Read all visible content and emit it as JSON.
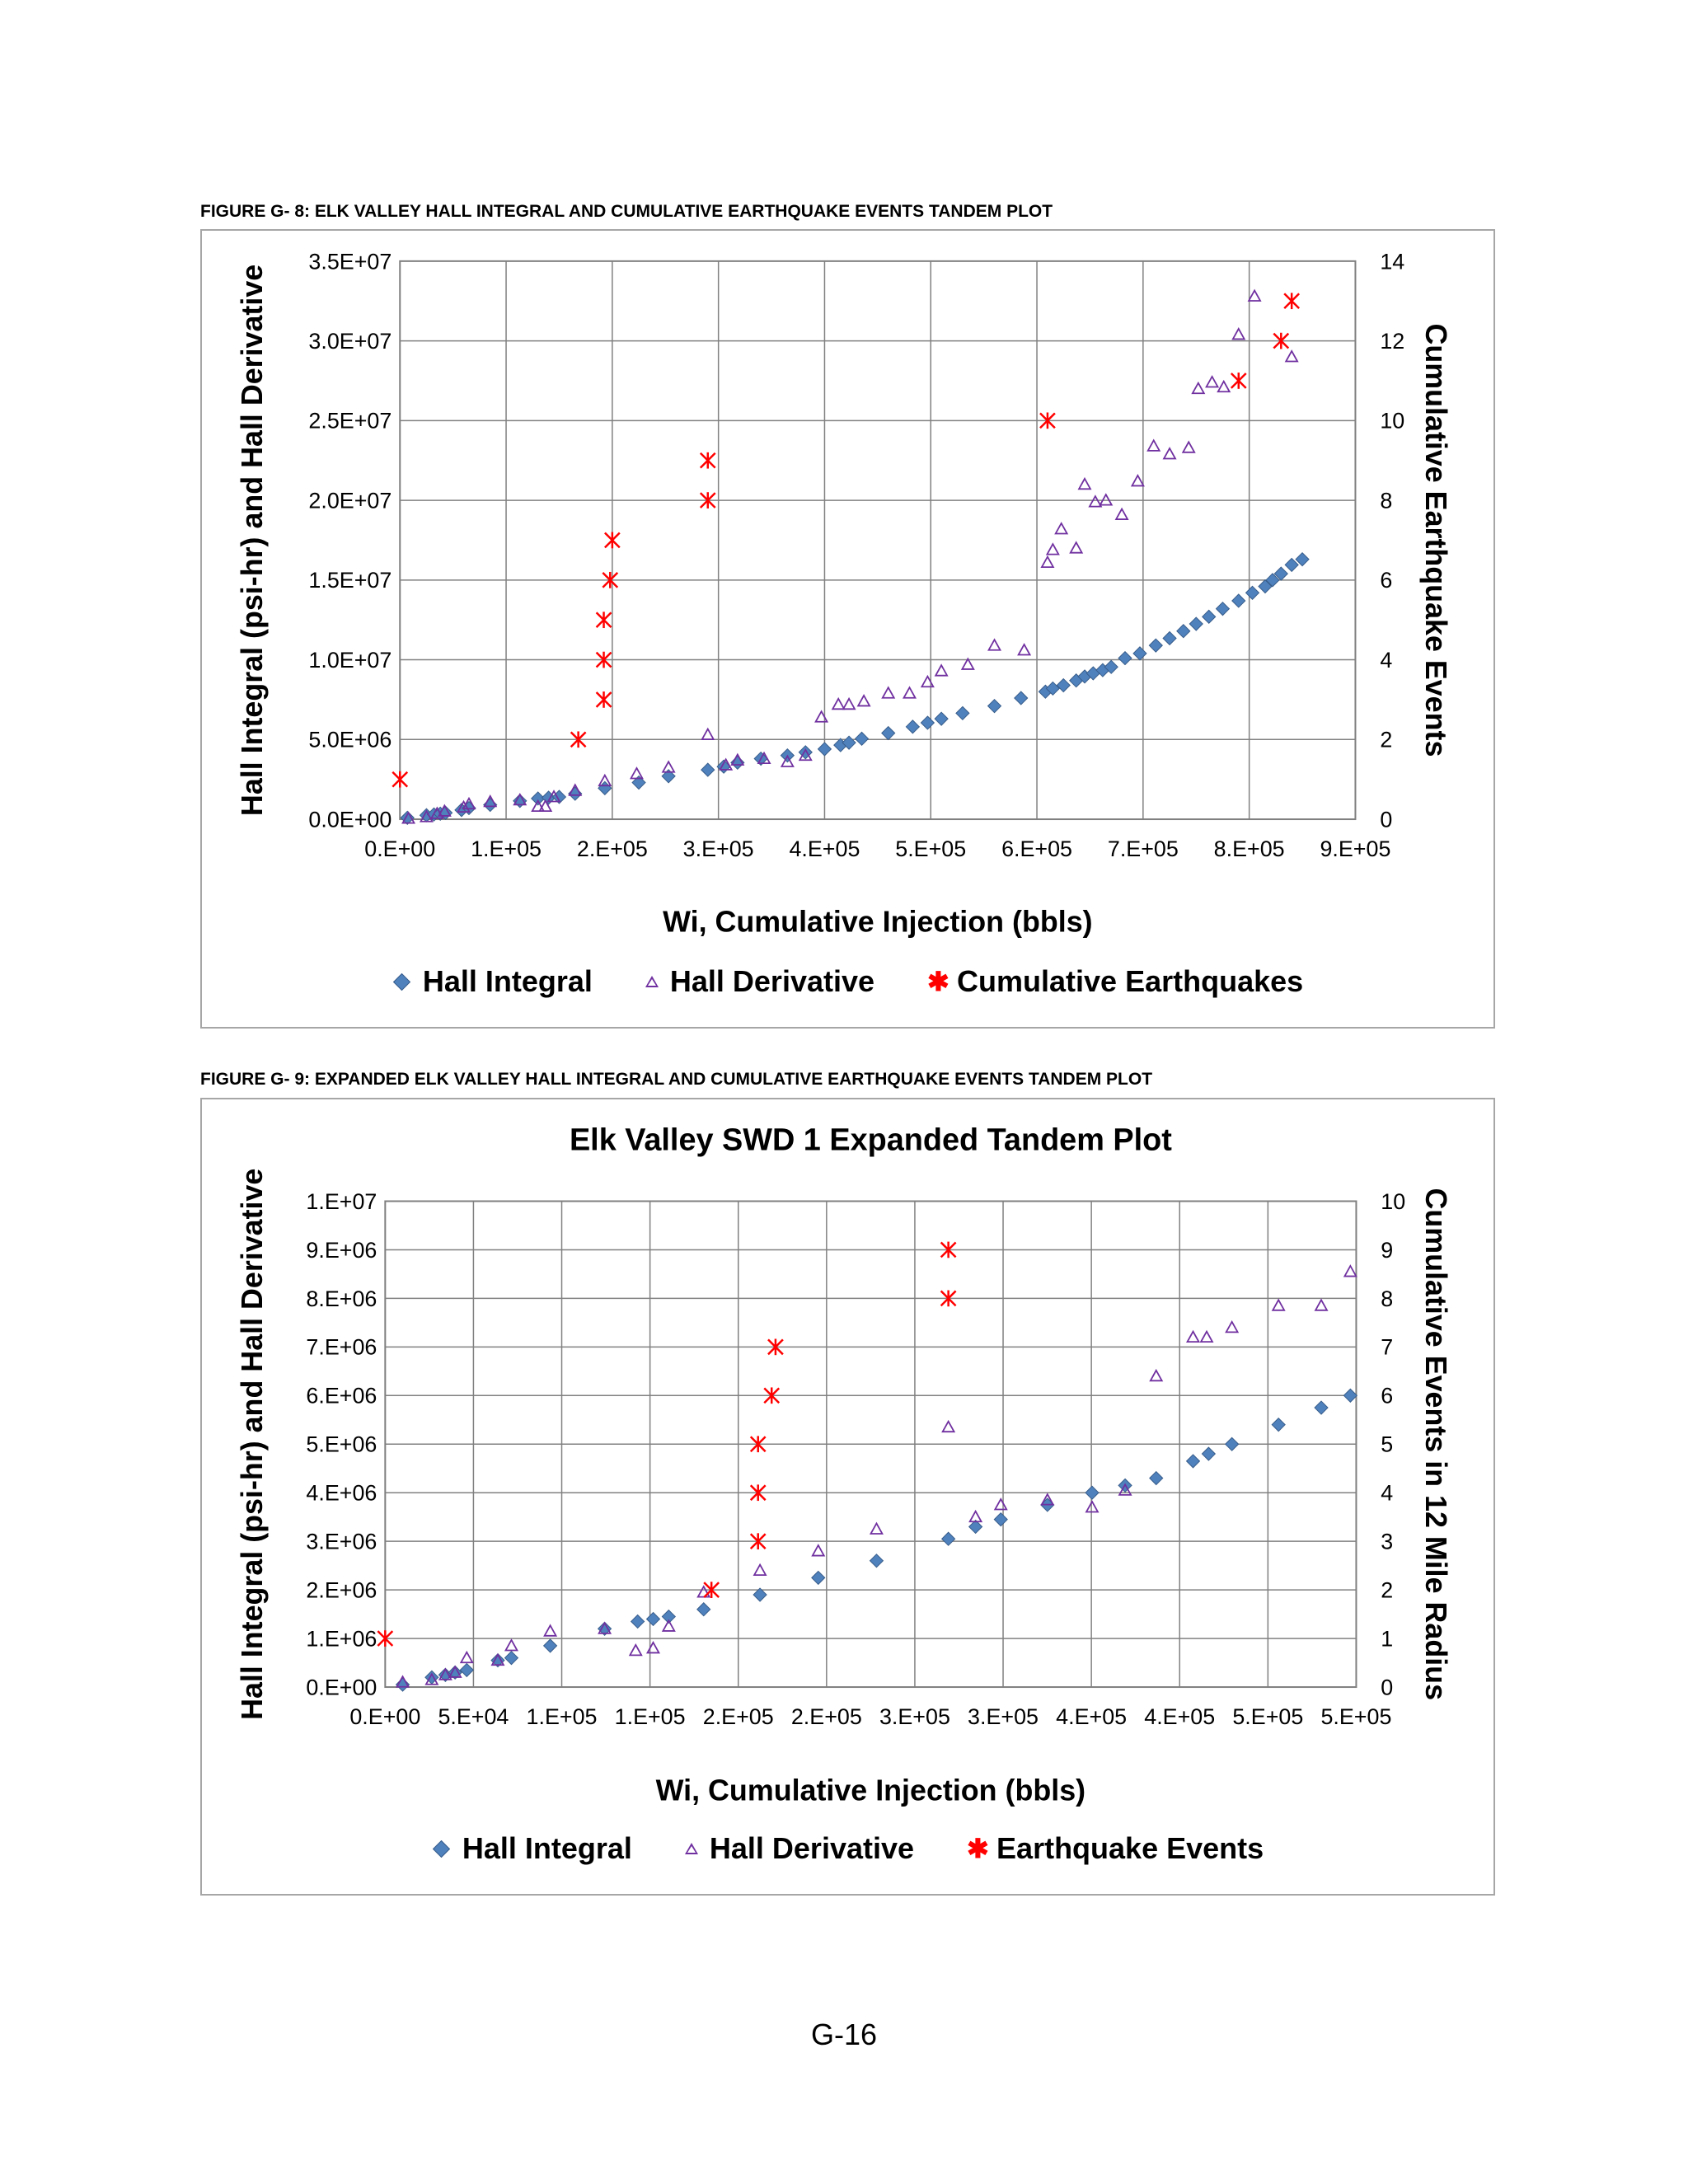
{
  "page": {
    "number": "G-16"
  },
  "colors": {
    "hall_integral": "#4f81bd",
    "hall_derivative": "#7030a0",
    "earthquakes": "#ff0000",
    "grid": "#808080"
  },
  "chart_data": [
    {
      "type": "scatter",
      "caption": "FIGURE G- 8:  ELK VALLEY HALL INTEGRAL AND CUMULATIVE EARTHQUAKE EVENTS TANDEM PLOT",
      "title": "",
      "xlabel": "Wi, Cumulative Injection (bbls)",
      "ylabel": "Hall Integral (psi-hr) and Hall Derivative",
      "y2label": "Cumulative Earthquake Events",
      "xlim": [
        0,
        900000
      ],
      "ylim": [
        0,
        35000000
      ],
      "y2lim": [
        0,
        14
      ],
      "x_ticks": [
        "0.E+00",
        "1.E+05",
        "2.E+05",
        "3.E+05",
        "4.E+05",
        "5.E+05",
        "6.E+05",
        "7.E+05",
        "8.E+05",
        "9.E+05"
      ],
      "y_ticks": [
        "0.0E+00",
        "5.0E+06",
        "1.0E+07",
        "1.5E+07",
        "2.0E+07",
        "2.5E+07",
        "3.0E+07",
        "3.5E+07"
      ],
      "y2_ticks": [
        "0",
        "2",
        "4",
        "6",
        "8",
        "10",
        "12",
        "14"
      ],
      "grid": true,
      "legend_position": "bottom",
      "series": [
        {
          "name": "Hall Integral",
          "axis": "left",
          "marker": "diamond",
          "x": [
            7000,
            25000,
            32000,
            38000,
            43000,
            58000,
            65000,
            85000,
            113000,
            130000,
            140000,
            150000,
            165000,
            193000,
            225000,
            253000,
            290000,
            305000,
            318000,
            340000,
            365000,
            382000,
            400000,
            415000,
            423000,
            435000,
            460000,
            483000,
            497000,
            510000,
            530000,
            560000,
            585000,
            608000,
            615000,
            625000,
            637000,
            645000,
            653000,
            662000,
            670000,
            683000,
            697000,
            712000,
            725000,
            738000,
            750000,
            762000,
            775000,
            790000,
            803000,
            815000,
            822000,
            830000,
            840000,
            850000
          ],
          "y": [
            90000,
            250000,
            300000,
            350000,
            400000,
            580000,
            700000,
            900000,
            1150000,
            1300000,
            1350000,
            1400000,
            1600000,
            1950000,
            2300000,
            2700000,
            3100000,
            3300000,
            3550000,
            3800000,
            4000000,
            4200000,
            4400000,
            4650000,
            4800000,
            5050000,
            5400000,
            5800000,
            6050000,
            6300000,
            6650000,
            7100000,
            7600000,
            8000000,
            8200000,
            8400000,
            8700000,
            8950000,
            9150000,
            9350000,
            9550000,
            10100000,
            10400000,
            10900000,
            11350000,
            11800000,
            12250000,
            12700000,
            13200000,
            13700000,
            14200000,
            14600000,
            15000000,
            15400000,
            15950000,
            16300000
          ]
        },
        {
          "name": "Hall Derivative",
          "axis": "left",
          "marker": "triangle",
          "x": [
            8000,
            25000,
            35000,
            42000,
            60000,
            65000,
            85000,
            113000,
            130000,
            137000,
            145000,
            165000,
            193000,
            223000,
            253000,
            290000,
            307000,
            318000,
            343000,
            365000,
            382000,
            397000,
            413000,
            423000,
            437000,
            460000,
            480000,
            497000,
            510000,
            535000,
            560000,
            588000,
            610000,
            615000,
            623000,
            637000,
            645000,
            655000,
            665000,
            680000,
            695000,
            710000,
            725000,
            743000,
            752000,
            765000,
            776000,
            790000,
            805000,
            840000
          ],
          "y": [
            50000,
            150000,
            350000,
            500000,
            750000,
            950000,
            1100000,
            1200000,
            800000,
            800000,
            1400000,
            1800000,
            2400000,
            2850000,
            3250000,
            5300000,
            3400000,
            3700000,
            3800000,
            3600000,
            4000000,
            6400000,
            7200000,
            7200000,
            7400000,
            7900000,
            7900000,
            8600000,
            9300000,
            9700000,
            10900000,
            10600000,
            16100000,
            16900000,
            18200000,
            17000000,
            21000000,
            19900000,
            20000000,
            19100000,
            21200000,
            23400000,
            22900000,
            23300000,
            27000000,
            27400000,
            27100000,
            30400000,
            32800000,
            29000000
          ]
        },
        {
          "name": "Cumulative Earthquakes",
          "axis": "right",
          "marker": "star",
          "x": [
            0,
            168000,
            192000,
            192000,
            192000,
            198000,
            200000,
            290000,
            290000,
            610000,
            790000,
            830000,
            840000
          ],
          "y": [
            1,
            2,
            3,
            4,
            5,
            6,
            7,
            8,
            9,
            10,
            11,
            12,
            13
          ]
        }
      ]
    },
    {
      "type": "scatter",
      "caption": "FIGURE G- 9:  EXPANDED ELK VALLEY HALL INTEGRAL AND CUMULATIVE EARTHQUAKE EVENTS TANDEM PLOT",
      "title": "Elk Valley SWD 1 Expanded Tandem Plot",
      "xlabel": "Wi, Cumulative Injection (bbls)",
      "ylabel": "Hall Integral (psi-hr) and Hall Derivative",
      "y2label": "Cumulative Events in 12 Mile Radius",
      "xlim": [
        0,
        500000
      ],
      "ylim": [
        0,
        10000000
      ],
      "y2lim": [
        0,
        10
      ],
      "x_ticks": [
        "0.E+00",
        "5.E+04",
        "1.E+05",
        "1.E+05",
        "2.E+05",
        "2.E+05",
        "3.E+05",
        "3.E+05",
        "4.E+05",
        "4.E+05",
        "5.E+05",
        "5.E+05"
      ],
      "y_ticks": [
        "0.E+00",
        "1.E+06",
        "2.E+06",
        "3.E+06",
        "4.E+06",
        "5.E+06",
        "6.E+06",
        "7.E+06",
        "8.E+06",
        "9.E+06",
        "1.E+07"
      ],
      "y2_ticks": [
        "0",
        "1",
        "2",
        "3",
        "4",
        "5",
        "6",
        "7",
        "8",
        "9",
        "10"
      ],
      "grid": true,
      "legend_position": "bottom",
      "series": [
        {
          "name": "Hall Integral",
          "axis": "left",
          "marker": "diamond",
          "x": [
            9000,
            24000,
            31000,
            36000,
            42000,
            58000,
            65000,
            85000,
            113000,
            130000,
            138000,
            146000,
            164000,
            193000,
            223000,
            253000,
            290000,
            304000,
            317000,
            341000,
            364000,
            381000,
            397000,
            416000,
            424000,
            436000,
            460000,
            482000,
            497000
          ],
          "y": [
            50000,
            200000,
            250000,
            300000,
            350000,
            550000,
            600000,
            850000,
            1200000,
            1350000,
            1400000,
            1450000,
            1600000,
            1900000,
            2250000,
            2600000,
            3050000,
            3300000,
            3450000,
            3750000,
            4000000,
            4150000,
            4300000,
            4650000,
            4800000,
            5000000,
            5400000,
            5750000,
            6000000
          ]
        },
        {
          "name": "Hall Derivative",
          "axis": "left",
          "marker": "triangle",
          "x": [
            9000,
            24000,
            31000,
            36000,
            42000,
            58000,
            65000,
            85000,
            113000,
            129000,
            138000,
            146000,
            164000,
            193000,
            223000,
            253000,
            290000,
            304000,
            317000,
            341000,
            364000,
            381000,
            397000,
            416000,
            423000,
            436000,
            460000,
            482000,
            497000
          ],
          "y": [
            100000,
            150000,
            250000,
            300000,
            600000,
            550000,
            850000,
            1150000,
            1200000,
            750000,
            800000,
            1250000,
            1950000,
            2400000,
            2800000,
            3250000,
            5350000,
            3500000,
            3750000,
            3850000,
            3700000,
            4050000,
            6400000,
            7200000,
            7200000,
            7400000,
            7850000,
            7850000,
            8550000
          ]
        },
        {
          "name": "Earthquake Events",
          "axis": "right",
          "marker": "star",
          "x": [
            0,
            168000,
            192000,
            192000,
            192000,
            199000,
            201000,
            290000,
            290000
          ],
          "y": [
            1,
            2,
            3,
            4,
            5,
            6,
            7,
            8,
            9
          ]
        }
      ]
    }
  ]
}
